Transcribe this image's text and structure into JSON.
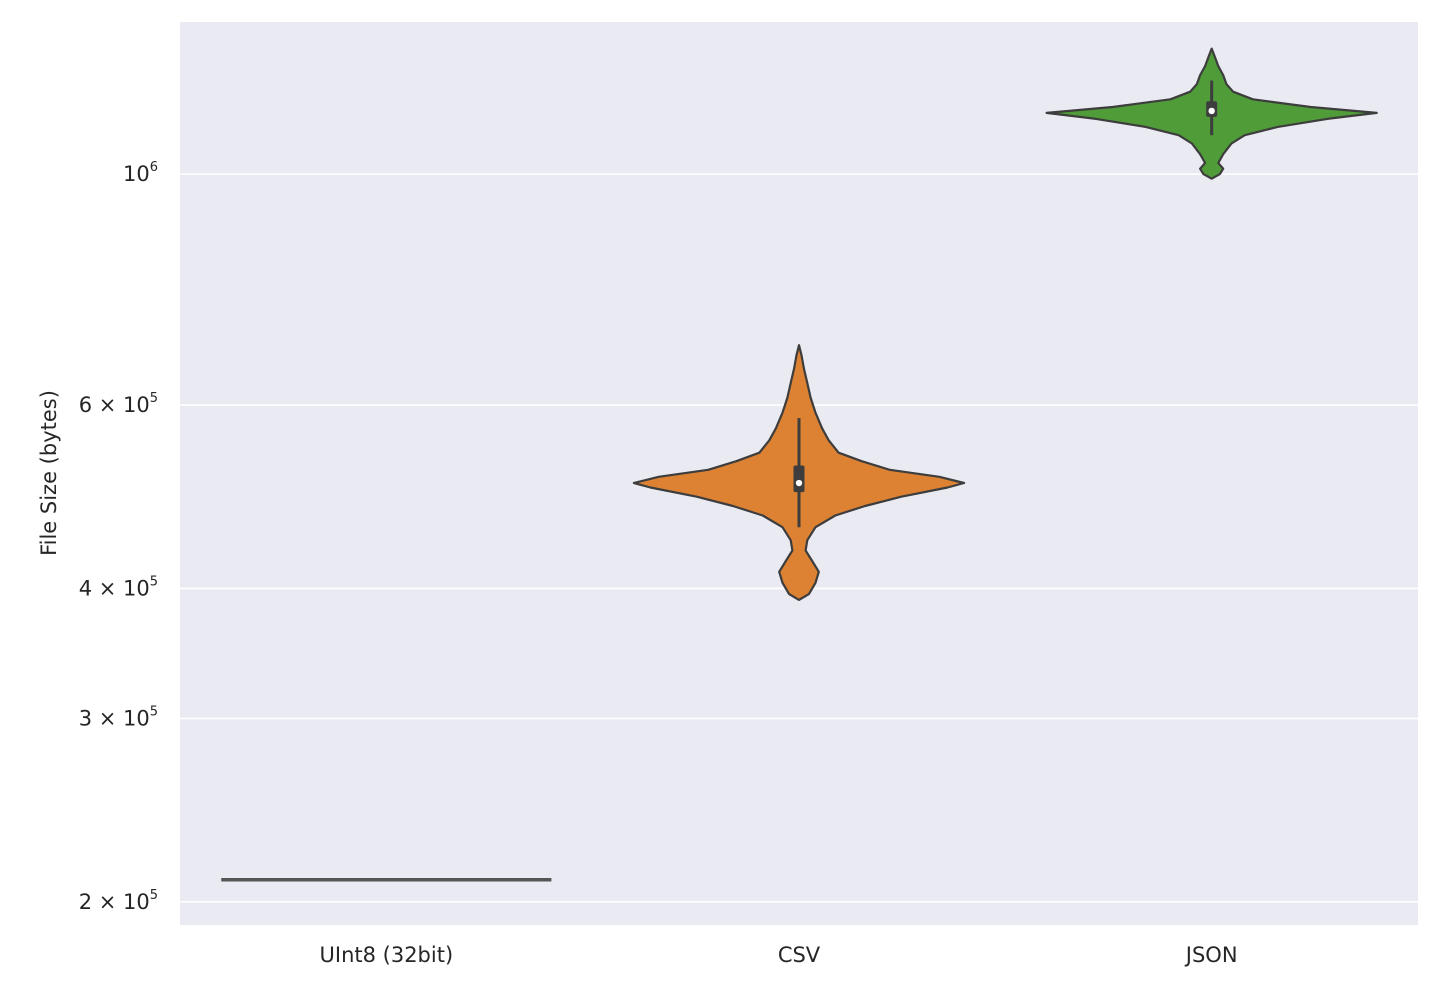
{
  "chart_data": {
    "type": "violin",
    "title": "",
    "xlabel": "",
    "ylabel": "File Size (bytes)",
    "yscale": "log",
    "ylim": [
      190000,
      1400000
    ],
    "grid": true,
    "categories": [
      "UInt8 (32bit)",
      "CSV",
      "JSON"
    ],
    "yticks": [
      {
        "value": 200000,
        "label": "2 × 10",
        "exp": "5"
      },
      {
        "value": 300000,
        "label": "3 × 10",
        "exp": "5"
      },
      {
        "value": 400000,
        "label": "4 × 10",
        "exp": "5"
      },
      {
        "value": 600000,
        "label": "6 × 10",
        "exp": "5"
      },
      {
        "value": 1000000,
        "label": "10",
        "exp": "6"
      }
    ],
    "series": [
      {
        "category": "UInt8 (32bit)",
        "color": "#555555",
        "constant_value": 210000,
        "median": 210000
      },
      {
        "category": "CSV",
        "color": "#dd8233",
        "min": 390000,
        "max": 685000,
        "q1": 495000,
        "median": 505000,
        "q3": 525000,
        "whisker_low": 458000,
        "whisker_high": 583000,
        "density": [
          [
            390000,
            0.0
          ],
          [
            395000,
            0.06
          ],
          [
            405000,
            0.1
          ],
          [
            415000,
            0.12
          ],
          [
            425000,
            0.08
          ],
          [
            435000,
            0.04
          ],
          [
            445000,
            0.05
          ],
          [
            458000,
            0.1
          ],
          [
            470000,
            0.22
          ],
          [
            480000,
            0.4
          ],
          [
            490000,
            0.62
          ],
          [
            500000,
            0.9
          ],
          [
            505000,
            1.0
          ],
          [
            512000,
            0.85
          ],
          [
            520000,
            0.55
          ],
          [
            530000,
            0.38
          ],
          [
            540000,
            0.24
          ],
          [
            555000,
            0.18
          ],
          [
            570000,
            0.14
          ],
          [
            590000,
            0.1
          ],
          [
            610000,
            0.07
          ],
          [
            630000,
            0.05
          ],
          [
            650000,
            0.03
          ],
          [
            670000,
            0.015
          ],
          [
            685000,
            0.0
          ]
        ]
      },
      {
        "category": "JSON",
        "color": "#4f9c38",
        "min": 990000,
        "max": 1320000,
        "q1": 1135000,
        "median": 1150000,
        "q3": 1175000,
        "whisker_low": 1090000,
        "whisker_high": 1230000,
        "density": [
          [
            990000,
            0.0
          ],
          [
            1000000,
            0.05
          ],
          [
            1012000,
            0.07
          ],
          [
            1025000,
            0.04
          ],
          [
            1045000,
            0.07
          ],
          [
            1070000,
            0.12
          ],
          [
            1090000,
            0.2
          ],
          [
            1110000,
            0.4
          ],
          [
            1130000,
            0.7
          ],
          [
            1145000,
            1.0
          ],
          [
            1160000,
            0.6
          ],
          [
            1180000,
            0.25
          ],
          [
            1200000,
            0.13
          ],
          [
            1220000,
            0.09
          ],
          [
            1245000,
            0.07
          ],
          [
            1270000,
            0.04
          ],
          [
            1295000,
            0.02
          ],
          [
            1320000,
            0.0
          ]
        ]
      }
    ]
  }
}
